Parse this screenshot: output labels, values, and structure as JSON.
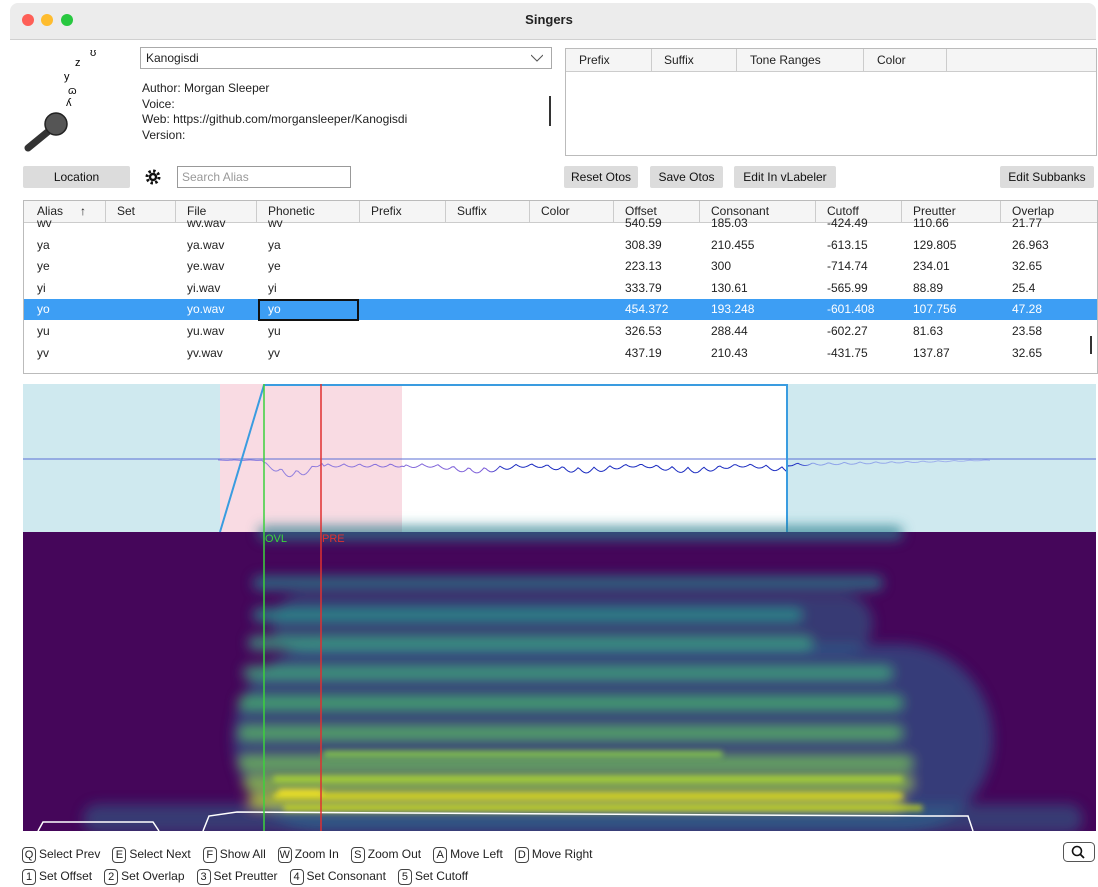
{
  "window": {
    "title": "Singers"
  },
  "singer": {
    "logo_glyphs": [
      "ʊ",
      "z",
      "y",
      "ɷ",
      "ʎ"
    ],
    "name": "Kanogisdi",
    "info": [
      "Author: Morgan Sleeper",
      "Voice:",
      "Web: https://github.com/morgansleeper/Kanogisdi",
      "Version:"
    ]
  },
  "subbanks": {
    "columns": [
      "Prefix",
      "Suffix",
      "Tone Ranges",
      "Color"
    ]
  },
  "toolbar": {
    "location": "Location",
    "search_placeholder": "Search Alias",
    "reset_otos": "Reset Otos",
    "save_otos": "Save Otos",
    "edit_in_vlabeler": "Edit In vLabeler",
    "edit_subbanks": "Edit Subbanks"
  },
  "table": {
    "columns": [
      "Alias",
      "Set",
      "File",
      "Phonetic",
      "Prefix",
      "Suffix",
      "Color",
      "Offset",
      "Consonant",
      "Cutoff",
      "Preutter",
      "Overlap"
    ],
    "sort_indicator": "↑",
    "selected_row": 4,
    "rows": [
      {
        "alias": "wv",
        "file": "wv.wav",
        "phonetic": "wv",
        "offset": "540.59",
        "consonant": "185.03",
        "cutoff": "-424.49",
        "preutter": "110.66",
        "overlap": "21.77"
      },
      {
        "alias": "ya",
        "file": "ya.wav",
        "phonetic": "ya",
        "offset": "308.39",
        "consonant": "210.455",
        "cutoff": "-613.15",
        "preutter": "129.805",
        "overlap": "26.963"
      },
      {
        "alias": "ye",
        "file": "ye.wav",
        "phonetic": "ye",
        "offset": "223.13",
        "consonant": "300",
        "cutoff": "-714.74",
        "preutter": "234.01",
        "overlap": "32.65"
      },
      {
        "alias": "yi",
        "file": "yi.wav",
        "phonetic": "yi",
        "offset": "333.79",
        "consonant": "130.61",
        "cutoff": "-565.99",
        "preutter": "88.89",
        "overlap": "25.4"
      },
      {
        "alias": "yo",
        "file": "yo.wav",
        "phonetic": "yo",
        "offset": "454.372",
        "consonant": "193.248",
        "cutoff": "-601.408",
        "preutter": "107.756",
        "overlap": "47.28"
      },
      {
        "alias": "yu",
        "file": "yu.wav",
        "phonetic": "yu",
        "offset": "326.53",
        "consonant": "288.44",
        "cutoff": "-602.27",
        "preutter": "81.63",
        "overlap": "23.58"
      },
      {
        "alias": "yv",
        "file": "yv.wav",
        "phonetic": "yv",
        "offset": "437.19",
        "consonant": "210.43",
        "cutoff": "-431.75",
        "preutter": "137.87",
        "overlap": "32.65"
      }
    ]
  },
  "waveform": {
    "overlap_label": "OVL",
    "preutter_label": "PRE"
  },
  "shortcuts": [
    [
      {
        "key": "Q",
        "label": "Select Prev"
      },
      {
        "key": "E",
        "label": "Select Next"
      },
      {
        "key": "F",
        "label": "Show All"
      },
      {
        "key": "W",
        "label": "Zoom In"
      },
      {
        "key": "S",
        "label": "Zoom Out"
      },
      {
        "key": "A",
        "label": "Move Left"
      },
      {
        "key": "D",
        "label": "Move Right"
      }
    ],
    [
      {
        "key": "1",
        "label": "Set Offset"
      },
      {
        "key": "2",
        "label": "Set Overlap"
      },
      {
        "key": "3",
        "label": "Set Preutter"
      },
      {
        "key": "4",
        "label": "Set Consonant"
      },
      {
        "key": "5",
        "label": "Set Cutoff"
      }
    ]
  ]
}
